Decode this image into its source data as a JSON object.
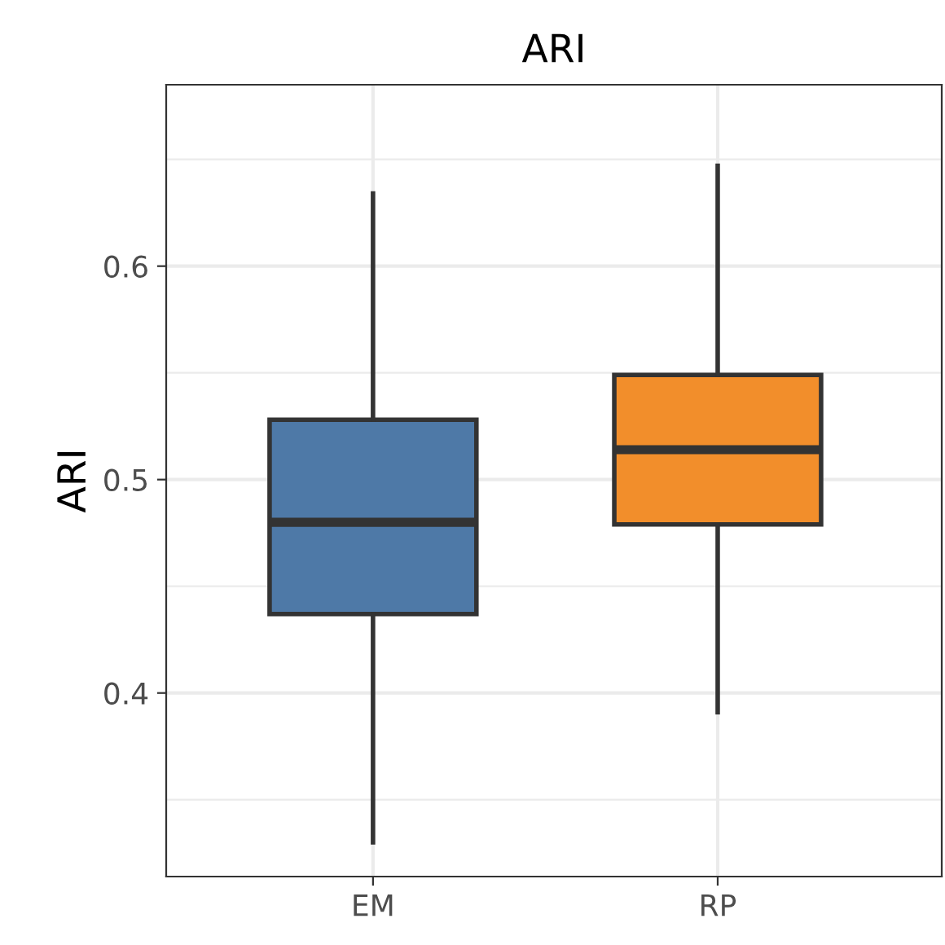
{
  "chart_data": {
    "type": "box",
    "title": "ARI",
    "ylabel": "ARI",
    "categories": [
      "EM",
      "RP"
    ],
    "colors": [
      "#4e79a7",
      "#f28e2b"
    ],
    "boxes": [
      {
        "low": 0.33,
        "q1": 0.437,
        "median": 0.48,
        "q3": 0.528,
        "high": 0.634
      },
      {
        "low": 0.391,
        "q1": 0.479,
        "median": 0.514,
        "q3": 0.549,
        "high": 0.647
      }
    ],
    "ylim": [
      0.314,
      0.685
    ],
    "yticks": [
      0.4,
      0.5,
      0.6
    ],
    "grid": true,
    "legend": false
  }
}
